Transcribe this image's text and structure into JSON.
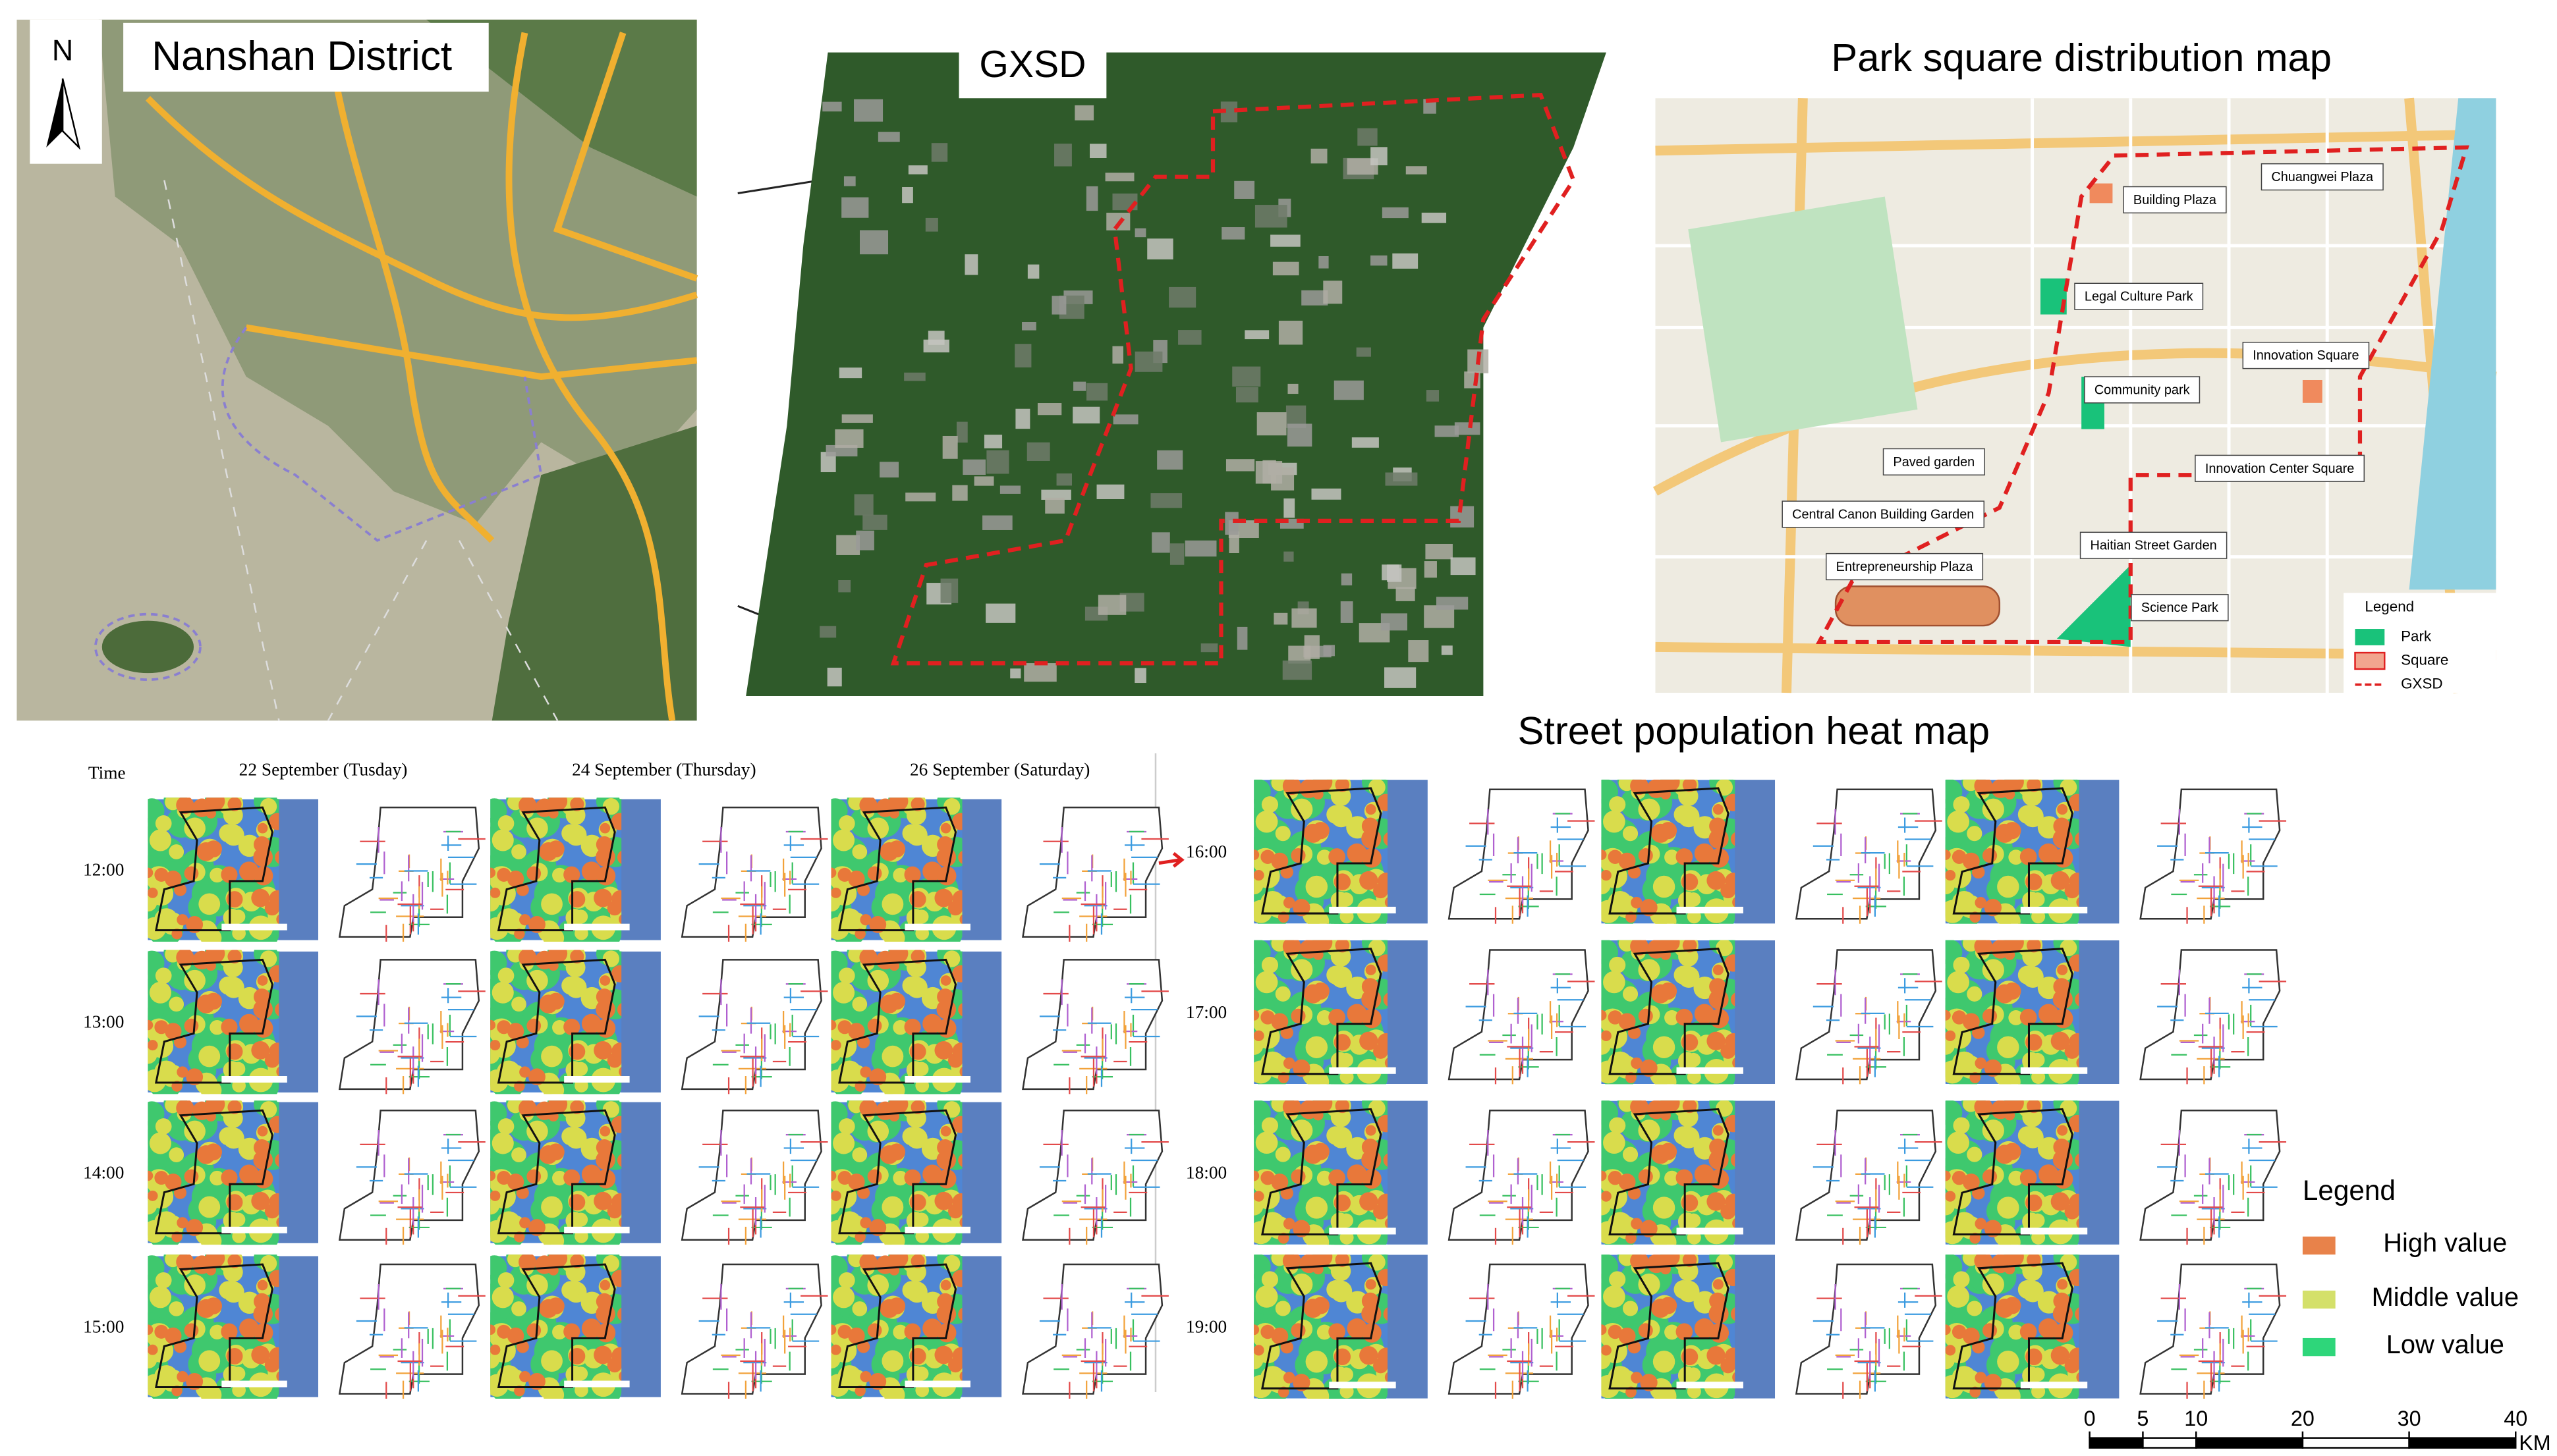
{
  "nanshan": {
    "north": "N",
    "title": "Nanshan District"
  },
  "gxsd": {
    "title": "GXSD"
  },
  "park_map": {
    "title": "Park square distribution map",
    "labels": [
      "Building Plaza",
      "Chuangwei Plaza",
      "Legal Culture Park",
      "Innovation Square",
      "Community park",
      "Paved garden",
      "Innovation Center Square",
      "Central Canon Building Garden",
      "Haitian Street Garden",
      "Entrepreneurship Plaza",
      "Science Park"
    ],
    "legend": {
      "title": "Legend",
      "items": [
        {
          "label": "Park",
          "color": "#19c27a"
        },
        {
          "label": "Square",
          "color": "#f2a58e"
        },
        {
          "label": "GXSD",
          "color": "#e02020"
        }
      ]
    }
  },
  "heat_map": {
    "title": "Street population heat map",
    "time_header": "Time",
    "dates": [
      "22 September (Tusday)",
      "24 September (Thursday)",
      "26 September (Saturday)"
    ],
    "times_left": [
      "12:00",
      "13:00",
      "14:00",
      "15:00"
    ],
    "times_right": [
      "16:00",
      "17:00",
      "18:00",
      "19:00"
    ],
    "legend": {
      "title": "Legend",
      "items": [
        {
          "label": "High value",
          "color": "#e8824a"
        },
        {
          "label": "Middle value",
          "color": "#d4e06a"
        },
        {
          "label": "Low value",
          "color": "#2ed67a"
        }
      ]
    }
  },
  "scale_bar": {
    "ticks": [
      0,
      5,
      10,
      20,
      30,
      40
    ],
    "unit": "KM"
  }
}
